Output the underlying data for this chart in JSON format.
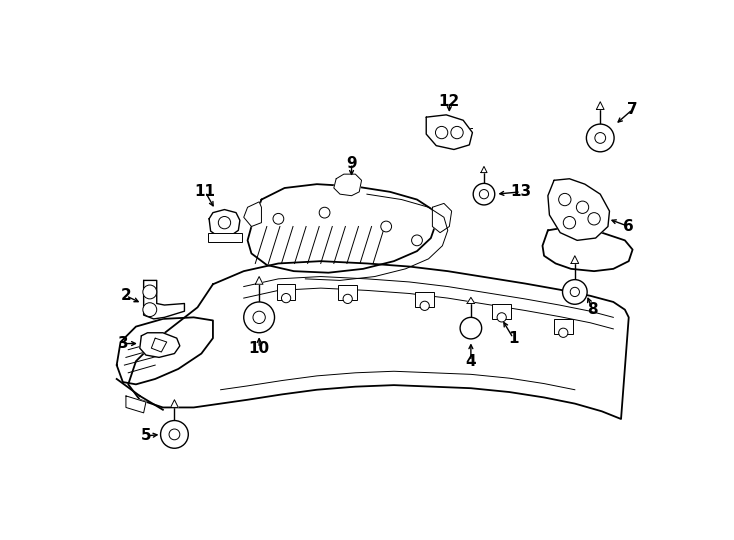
{
  "background_color": "#ffffff",
  "line_color": "#000000",
  "label_color": "#000000",
  "figsize": [
    7.34,
    5.4
  ],
  "dpi": 100,
  "font_size": 11,
  "lw_main": 1.3,
  "lw_thin": 0.7,
  "lw_med": 1.0
}
